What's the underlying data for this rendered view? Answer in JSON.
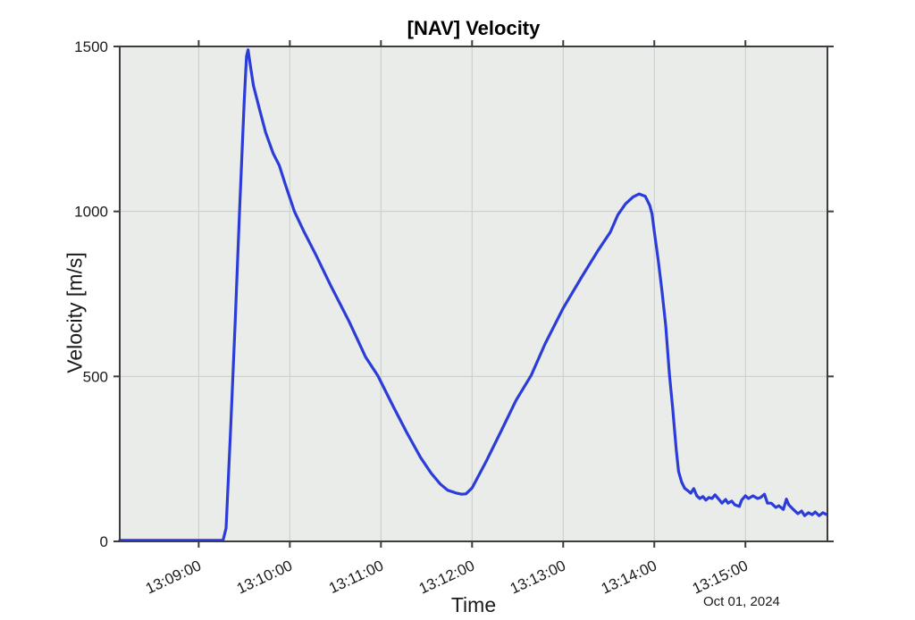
{
  "figure": {
    "kind": "matlab-style-plot"
  },
  "style": {
    "figure_bg": "#ffffff",
    "plot_bg": "#e9ece9",
    "grid_color": "#c9cdca",
    "axis_color": "#3d3d3d",
    "line_color": "#2b3cd8",
    "text_color": "#1a1a1a"
  },
  "chart_data": {
    "type": "line",
    "title": "[NAV] Velocity",
    "xlabel": "Time",
    "ylabel": "Velocity [m/s]",
    "date_label": "Oct 01, 2024",
    "grid": true,
    "legend": null,
    "x_unit": "seconds after 13:08:00, Oct 01, 2024",
    "xlim_s": [
      8,
      474
    ],
    "ylim": [
      0,
      1500
    ],
    "y_ticks": [
      0,
      500,
      1000,
      1500
    ],
    "y_tick_labels": [
      "0",
      "500",
      "1000",
      "1500"
    ],
    "x_tick_offsets_s": [
      60,
      120,
      180,
      240,
      300,
      360,
      420
    ],
    "x_tick_labels": [
      "13:09:00",
      "13:10:00",
      "13:11:00",
      "13:12:00",
      "13:13:00",
      "13:14:00",
      "13:15:00"
    ],
    "key_features": {
      "flat_zero_until": "13:09:17",
      "first_peak": {
        "time": "13:09:33",
        "value": 1490
      },
      "valley": {
        "time": "13:11:53",
        "value": 143
      },
      "second_peak": {
        "time": "13:13:50",
        "value": 1053
      },
      "noisy_tail_end": {
        "time": "13:15:53",
        "value": 81
      }
    },
    "series": [
      {
        "name": "velocity",
        "color": "#2b3cd8",
        "points": [
          [
            8,
            3
          ],
          [
            40,
            3
          ],
          [
            60,
            3
          ],
          [
            76,
            3
          ],
          [
            78,
            40
          ],
          [
            81,
            340
          ],
          [
            84,
            665
          ],
          [
            87,
            1015
          ],
          [
            90,
            1340
          ],
          [
            91.5,
            1470
          ],
          [
            92.5,
            1490
          ],
          [
            94,
            1442
          ],
          [
            96,
            1382
          ],
          [
            100,
            1310
          ],
          [
            104,
            1240
          ],
          [
            109,
            1176
          ],
          [
            113,
            1140
          ],
          [
            117,
            1082
          ],
          [
            123,
            1000
          ],
          [
            129,
            942
          ],
          [
            137,
            870
          ],
          [
            147,
            775
          ],
          [
            159,
            667
          ],
          [
            170,
            558
          ],
          [
            178,
            502
          ],
          [
            188,
            410
          ],
          [
            197,
            330
          ],
          [
            206,
            255
          ],
          [
            213,
            207
          ],
          [
            219,
            174
          ],
          [
            224,
            155
          ],
          [
            230,
            146
          ],
          [
            233,
            143
          ],
          [
            236,
            144
          ],
          [
            240,
            162
          ],
          [
            249,
            240
          ],
          [
            259,
            333
          ],
          [
            269,
            428
          ],
          [
            279,
            504
          ],
          [
            288,
            598
          ],
          [
            300,
            707
          ],
          [
            312,
            800
          ],
          [
            323,
            882
          ],
          [
            331,
            937
          ],
          [
            336,
            990
          ],
          [
            341,
            1023
          ],
          [
            346,
            1044
          ],
          [
            350,
            1053
          ],
          [
            354,
            1046
          ],
          [
            357,
            1018
          ],
          [
            358.5,
            992
          ],
          [
            360,
            940
          ],
          [
            362.5,
            855
          ],
          [
            365,
            762
          ],
          [
            367.5,
            655
          ],
          [
            370,
            505
          ],
          [
            372,
            410
          ],
          [
            374.5,
            275
          ],
          [
            376,
            212
          ],
          [
            378,
            180
          ],
          [
            380,
            161
          ],
          [
            382,
            154
          ],
          [
            384,
            146
          ],
          [
            386,
            160
          ],
          [
            388,
            138
          ],
          [
            390,
            130
          ],
          [
            392,
            136
          ],
          [
            394,
            125
          ],
          [
            396,
            133
          ],
          [
            398,
            130
          ],
          [
            400,
            141
          ],
          [
            403,
            125
          ],
          [
            404.5,
            116
          ],
          [
            407,
            127
          ],
          [
            408.5,
            116
          ],
          [
            411,
            122
          ],
          [
            413,
            111
          ],
          [
            416,
            106
          ],
          [
            417.5,
            125
          ],
          [
            420,
            138
          ],
          [
            422,
            130
          ],
          [
            425,
            138
          ],
          [
            428,
            130
          ],
          [
            430,
            133
          ],
          [
            432.5,
            143
          ],
          [
            434.5,
            116
          ],
          [
            437,
            116
          ],
          [
            440,
            103
          ],
          [
            442,
            108
          ],
          [
            445,
            97
          ],
          [
            447,
            128
          ],
          [
            448.5,
            111
          ],
          [
            451.5,
            97
          ],
          [
            454.5,
            84
          ],
          [
            457,
            92
          ],
          [
            459,
            78
          ],
          [
            461.5,
            87
          ],
          [
            464,
            81
          ],
          [
            466,
            89
          ],
          [
            468.5,
            78
          ],
          [
            471,
            87
          ],
          [
            473.5,
            81
          ]
        ]
      }
    ]
  }
}
